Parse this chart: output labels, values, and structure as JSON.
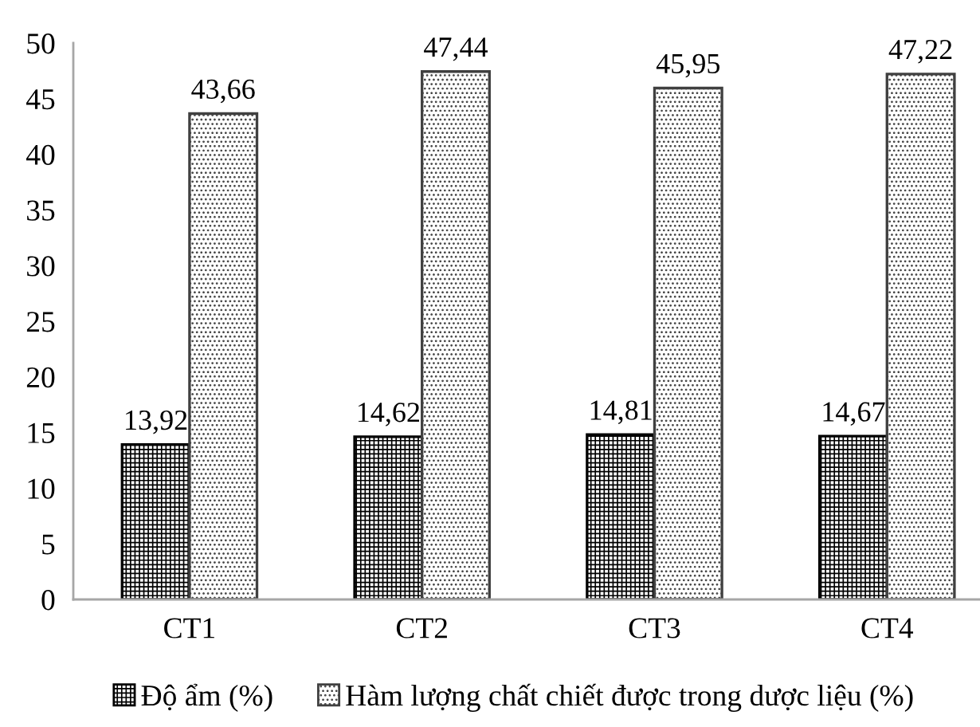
{
  "chart_data": {
    "type": "bar",
    "categories": [
      "CT1",
      "CT2",
      "CT3",
      "CT4"
    ],
    "series": [
      {
        "name": "Độ ẩm (%)",
        "color": "#000000",
        "values": [
          13.92,
          14.62,
          14.81,
          14.67
        ],
        "value_labels": [
          "13,92",
          "14,62",
          "14,81",
          "14,67"
        ]
      },
      {
        "name": "Hàm lượng chất chiết được trong dược liệu (%)",
        "color": "#404040",
        "values": [
          43.66,
          47.44,
          45.95,
          47.22
        ],
        "value_labels": [
          "43,66",
          "47,44",
          "45,95",
          "47,22"
        ]
      }
    ],
    "ylim": [
      0,
      50
    ],
    "yticks": [
      0,
      5,
      10,
      15,
      20,
      25,
      30,
      35,
      40,
      45,
      50
    ],
    "grid": false,
    "legend": "bottom"
  }
}
